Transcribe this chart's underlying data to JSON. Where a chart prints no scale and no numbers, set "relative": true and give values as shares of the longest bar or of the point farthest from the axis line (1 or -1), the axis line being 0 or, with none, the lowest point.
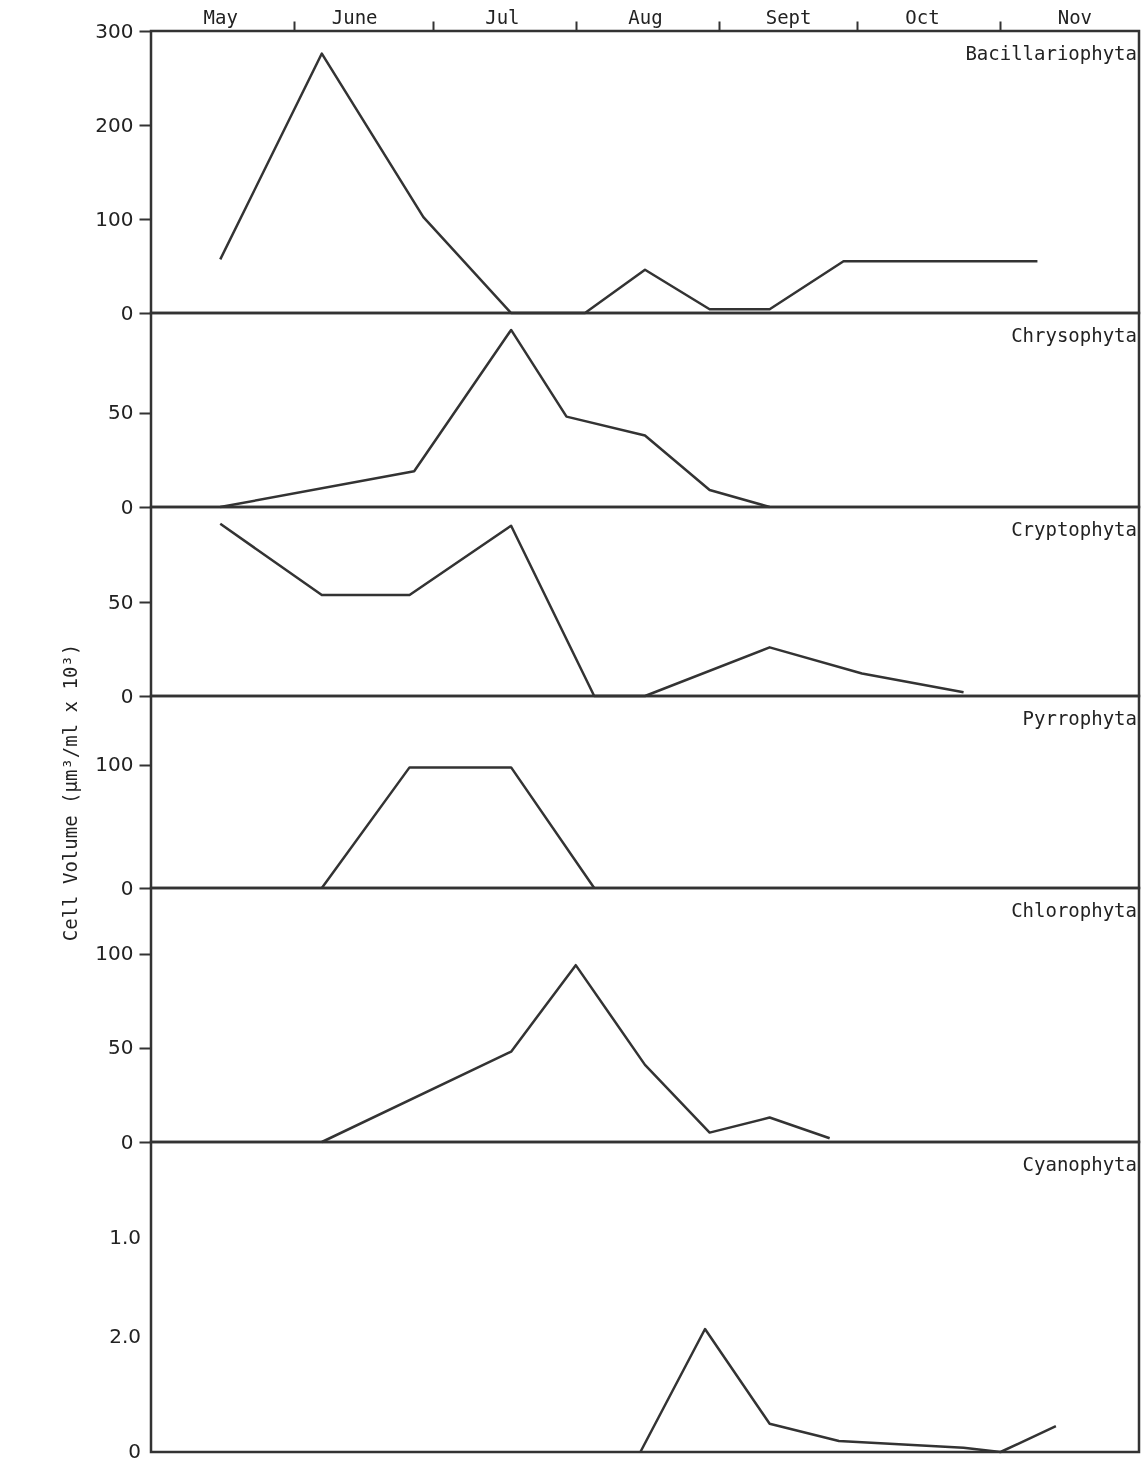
{
  "chart_data": [
    {
      "type": "line",
      "xlim": [
        "--05-01",
        "--12-01"
      ],
      "xticks": [
        {
          "value": "--05-16",
          "label": "May"
        },
        {
          "value": "--06-01",
          "label": null
        },
        {
          "value": "--06-14",
          "label": "June"
        },
        {
          "value": "--07-01",
          "label": null
        },
        {
          "value": "--07-16",
          "label": "Jul"
        },
        {
          "value": "--08-01",
          "label": null
        },
        {
          "value": "--08-16",
          "label": "Aug"
        },
        {
          "value": "--09-01",
          "label": null
        },
        {
          "value": "--09-16",
          "label": "Sept"
        },
        {
          "value": "--10-01",
          "label": null
        },
        {
          "value": "--10-15",
          "label": "Oct"
        },
        {
          "value": "--11-01",
          "label": null
        },
        {
          "value": "--11-17",
          "label": "Nov"
        }
      ],
      "ylim": [
        0,
        300
      ],
      "yticks": [
        0,
        100,
        200,
        300
      ],
      "series": [
        {
          "name": "Bacillariophyta",
          "color": "#333333",
          "x": [
            "--05-16",
            "--06-07",
            "--06-29",
            "--07-18",
            "--08-03",
            "--08-16",
            "--08-30",
            "--09-12",
            "--09-28",
            "--11-09"
          ],
          "values": [
            57,
            276,
            102,
            0,
            0,
            46,
            4,
            4,
            55,
            55
          ]
        }
      ]
    },
    {
      "type": "line",
      "xlim": [
        "--05-01",
        "--12-01"
      ],
      "ylim": [
        0,
        103
      ],
      "yticks": [
        0,
        50
      ],
      "tick_labels": "y",
      "series": [
        {
          "name": "Chrysophyta",
          "color": "#333333",
          "x": [
            "--05-16",
            "--06-27",
            "--07-18",
            "--07-30",
            "--08-16",
            "--08-30",
            "--09-12"
          ],
          "values": [
            0,
            19,
            94,
            48,
            38,
            9,
            0
          ]
        }
      ]
    },
    {
      "type": "line",
      "xlim": [
        "--05-01",
        "--12-01"
      ],
      "ylim": [
        0,
        101
      ],
      "yticks": [
        0,
        50
      ],
      "tick_labels": "y",
      "series": [
        {
          "name": "Cryptophyta",
          "color": "#333333",
          "x": [
            "--05-16",
            "--06-07",
            "--06-26",
            "--07-18",
            "--08-05",
            "--08-16",
            "--09-12",
            "--10-02",
            "--10-24"
          ],
          "values": [
            92,
            54,
            54,
            91,
            0,
            0,
            26,
            12,
            2
          ]
        }
      ]
    },
    {
      "type": "line",
      "xlim": [
        "--05-01",
        "--12-01"
      ],
      "ylim": [
        0,
        156
      ],
      "yticks": [
        0,
        100
      ],
      "tick_labels": "y",
      "ylabel": "Cell Volume (µm³/ml x 10³)",
      "series": [
        {
          "name": "Pyrrophyta",
          "color": "#333333",
          "x": [
            "--06-07",
            "--06-26",
            "--07-18",
            "--08-05"
          ],
          "values": [
            0,
            98,
            98,
            0
          ]
        }
      ]
    },
    {
      "type": "line",
      "xlim": [
        "--05-01",
        "--12-01"
      ],
      "ylim": [
        0,
        135
      ],
      "yticks": [
        0,
        50,
        100
      ],
      "tick_labels": "y",
      "series": [
        {
          "name": "Chlorophyta",
          "color": "#333333",
          "x": [
            "--06-07",
            "--07-18",
            "--08-01",
            "--08-16",
            "--08-30",
            "--09-12",
            "--09-25"
          ],
          "values": [
            0,
            48,
            94,
            41,
            5,
            13,
            2
          ]
        }
      ]
    },
    {
      "type": "line",
      "xlim": [
        "--05-01",
        "--12-01"
      ],
      "relative": true,
      "tick_labels": "y",
      "annotations": [
        "1.0",
        "2.0",
        "0"
      ],
      "series": [
        {
          "name": "Cyanophyta",
          "color": "#333333",
          "x": [
            "--08-15",
            "--08-29",
            "--09-12",
            "--09-27",
            "--10-24",
            "--11-01",
            "--11-13"
          ],
          "values": [
            0,
            1,
            0.23,
            0.09,
            0.035,
            0,
            0.21
          ]
        }
      ]
    }
  ]
}
